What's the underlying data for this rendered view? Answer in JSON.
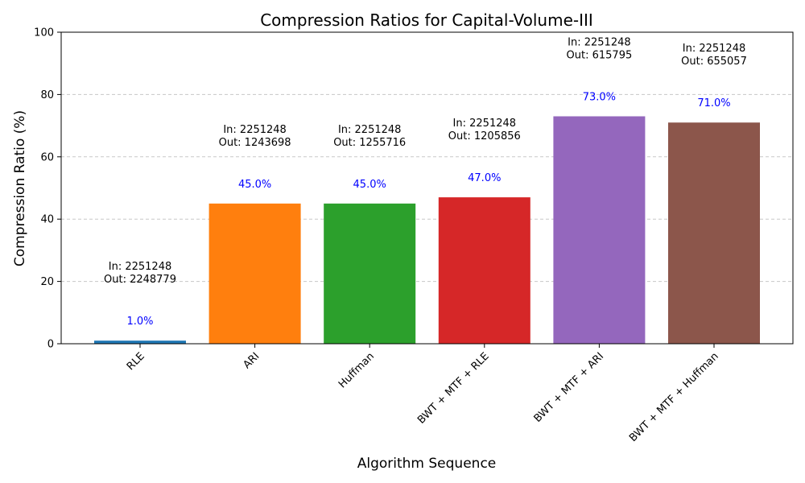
{
  "chart_data": {
    "type": "bar",
    "title": "Compression Ratios for Capital-Volume-III",
    "xlabel": "Algorithm Sequence",
    "ylabel": "Compression Ratio (%)",
    "ylim": [
      0,
      100
    ],
    "yticks": [
      0,
      20,
      40,
      60,
      80,
      100
    ],
    "grid": "y-dashed",
    "categories": [
      "RLE",
      "ARI",
      "Huffman",
      "BWT + MTF + RLE",
      "BWT + MTF + ARI",
      "BWT + MTF + Huffman"
    ],
    "values": [
      1.0,
      45.0,
      45.0,
      47.0,
      73.0,
      71.0
    ],
    "value_labels": [
      "1.0%",
      "45.0%",
      "45.0%",
      "47.0%",
      "73.0%",
      "71.0%"
    ],
    "in_labels": [
      "In: 2251248",
      "In: 2251248",
      "In: 2251248",
      "In: 2251248",
      "In: 2251248",
      "In: 2251248"
    ],
    "out_labels": [
      "Out: 2248779",
      "Out: 1243698",
      "Out: 1255716",
      "Out: 1205856",
      "Out: 615795",
      "Out: 655057"
    ],
    "colors": [
      "#1f77b4",
      "#ff7f0e",
      "#2ca02c",
      "#d62728",
      "#9467bd",
      "#8c564b"
    ],
    "value_label_color": "#0000ff"
  }
}
